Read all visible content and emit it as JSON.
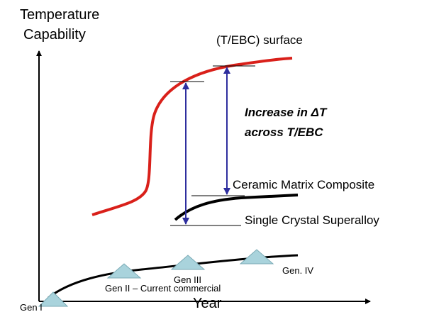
{
  "y_axis_label": [
    "Temperature",
    "Capability"
  ],
  "x_axis_label": "Year",
  "curve_labels": {
    "surface": "(T/EBC) surface",
    "cmc": "Ceramic Matrix Composite",
    "superalloy": "Single Crystal Superalloy"
  },
  "annotation": [
    "Increase in ΔT",
    "across T/EBC"
  ],
  "generations": [
    "Gen I",
    "Gen II – Current commercial",
    "Gen III",
    "Gen. IV"
  ]
}
